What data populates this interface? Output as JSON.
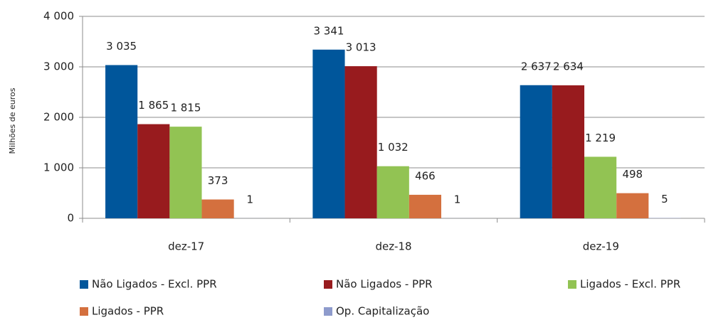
{
  "chart_data": {
    "type": "bar",
    "y_label": "Milhões de euros",
    "categories": [
      "dez-17",
      "dez-18",
      "dez-19"
    ],
    "series": [
      {
        "name": "Não Ligados - Excl. PPR",
        "color": "#00569b",
        "values": [
          3035,
          3341,
          2637
        ],
        "value_labels": [
          "3 035",
          "3 341",
          "2 637"
        ]
      },
      {
        "name": "Não Ligados - PPR",
        "color": "#981b1e",
        "values": [
          1865,
          3013,
          2634
        ],
        "value_labels": [
          "1 865",
          "3 013",
          "2 634"
        ]
      },
      {
        "name": "Ligados - Excl. PPR",
        "color": "#92c353",
        "values": [
          1815,
          1032,
          1219
        ],
        "value_labels": [
          "1 815",
          "1 032",
          "1 219"
        ]
      },
      {
        "name": "Ligados - PPR",
        "color": "#d4703e",
        "values": [
          373,
          466,
          498
        ]
      },
      {
        "name": "Op. Capitalização",
        "color": "#8e9bcc",
        "values": [
          1,
          1,
          5
        ]
      }
    ],
    "ylim": [
      0,
      4000
    ],
    "yticks": [
      0,
      {
        "value": 1000,
        "label": "1 000"
      },
      {
        "value": 2000,
        "label": "2 000"
      },
      {
        "value": 3000,
        "label": "3 000"
      },
      {
        "value": 4000,
        "label": "4 000"
      }
    ],
    "grid": true
  }
}
